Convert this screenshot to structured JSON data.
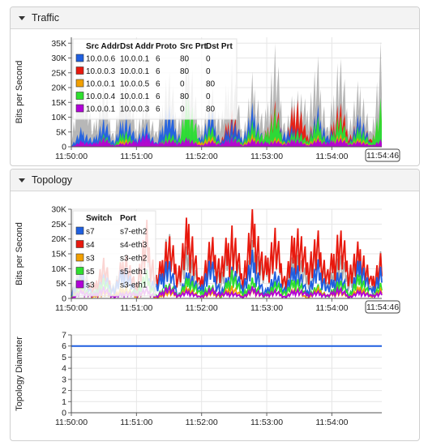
{
  "panels": [
    {
      "title": "Traffic"
    },
    {
      "title": "Topology"
    }
  ],
  "colors": {
    "blue": "#1f5fe0",
    "red": "#e8190e",
    "orange": "#f2a000",
    "green": "#2ee02e",
    "purple": "#b100d8",
    "gray": "#aaaaaa"
  },
  "chart_data": [
    {
      "type": "area",
      "title": "Traffic",
      "ylabel": "Bits per Second",
      "ylim": [
        0,
        37000
      ],
      "y_ticks": [
        "0",
        "5K",
        "10K",
        "15K",
        "20K",
        "25K",
        "30K",
        "35K"
      ],
      "x_ticks": [
        "11:50:00",
        "11:51:00",
        "11:52:00",
        "11:53:00",
        "11:54:00"
      ],
      "x_current": "11:54:46",
      "grid": true,
      "legend_position": "top-left",
      "legend_headers": [
        "Src Addr",
        "Dst Addr",
        "Proto",
        "Src Prt",
        "Dst Prt"
      ],
      "legend_rows": [
        {
          "color": "#1f5fe0",
          "cells": [
            "10.0.0.6",
            "10.0.0.1",
            "6",
            "80",
            "0"
          ]
        },
        {
          "color": "#e8190e",
          "cells": [
            "10.0.0.3",
            "10.0.0.1",
            "6",
            "80",
            "0"
          ]
        },
        {
          "color": "#f2a000",
          "cells": [
            "10.0.0.1",
            "10.0.0.5",
            "6",
            "0",
            "80"
          ]
        },
        {
          "color": "#2ee02e",
          "cells": [
            "10.0.0.4",
            "10.0.0.1",
            "6",
            "80",
            "0"
          ]
        },
        {
          "color": "#b100d8",
          "cells": [
            "10.0.0.1",
            "10.0.0.3",
            "6",
            "0",
            "80"
          ]
        }
      ],
      "series_envelope": {
        "gray": [
          2000,
          30000,
          5000,
          20000,
          3000,
          28000,
          6000,
          15000,
          4000,
          25000,
          8000,
          33000,
          5000,
          18000,
          9000,
          27000,
          4000,
          22000,
          7000,
          31000,
          6000,
          19000,
          12000,
          26000,
          5000,
          30000,
          8000,
          21000,
          4000,
          34000
        ],
        "blue": [
          500,
          6000,
          2000,
          9000,
          1500,
          11000,
          3000,
          7000,
          1000,
          14000,
          4000,
          8000,
          2500,
          12000,
          1500,
          9000,
          3000,
          13000,
          2000,
          10000,
          4500,
          7000,
          1500,
          12000,
          3000,
          9000,
          2000,
          11000,
          1000,
          8000
        ],
        "red": [
          0,
          2000,
          500,
          3000,
          0,
          2500,
          1000,
          4000,
          500,
          3500,
          1500,
          6000,
          1000,
          8000,
          2000,
          12000,
          1500,
          9000,
          3000,
          14000,
          2000,
          17000,
          4000,
          11000,
          2500,
          15000,
          3500,
          10000,
          2000,
          13000
        ],
        "green": [
          0,
          1000,
          0,
          4000,
          500,
          6000,
          1000,
          3000,
          0,
          5000,
          2000,
          18000,
          1000,
          7000,
          500,
          4000,
          1500,
          8000,
          3000,
          12000,
          1000,
          6000,
          2000,
          9000,
          500,
          11000,
          1500,
          7000,
          1000,
          16000
        ],
        "orange": [
          0,
          1500,
          500,
          2000,
          0,
          3000,
          500,
          1500,
          1000,
          2500,
          500,
          2000,
          1500,
          3500,
          500,
          2000,
          1000,
          4000,
          500,
          3000,
          1500,
          2500,
          1000,
          3500,
          500,
          4500,
          1000,
          3000,
          500,
          2000
        ],
        "purple": [
          0,
          2000,
          1000,
          3000,
          500,
          1500,
          2000,
          4000,
          1000,
          2500,
          1500,
          3000,
          500,
          2000,
          1000,
          3500,
          500,
          2500,
          1500,
          2000,
          1000,
          3000,
          500,
          2500,
          1500,
          3000,
          1000,
          2000,
          500,
          2500
        ]
      }
    },
    {
      "type": "line",
      "title": "Topology",
      "ylabel": "Bits per Second",
      "ylim": [
        0,
        30000
      ],
      "y_ticks": [
        "0",
        "5K",
        "10K",
        "15K",
        "20K",
        "25K",
        "30K"
      ],
      "x_ticks": [
        "11:50:00",
        "11:51:00",
        "11:52:00",
        "11:53:00",
        "11:54:00"
      ],
      "x_current": "11:54:46",
      "grid": true,
      "legend_position": "top-left",
      "legend_headers": [
        "Switch",
        "Port"
      ],
      "legend_rows": [
        {
          "color": "#1f5fe0",
          "cells": [
            "s7",
            "s7-eth2"
          ]
        },
        {
          "color": "#e8190e",
          "cells": [
            "s4",
            "s4-eth3"
          ]
        },
        {
          "color": "#f2a000",
          "cells": [
            "s3",
            "s3-eth2"
          ]
        },
        {
          "color": "#2ee02e",
          "cells": [
            "s5",
            "s5-eth1"
          ]
        },
        {
          "color": "#b100d8",
          "cells": [
            "s3",
            "s3-eth1"
          ]
        }
      ],
      "series_envelope": {
        "gray": [
          3000,
          12000,
          2000,
          9000,
          4000,
          14000,
          3000,
          19000,
          5000,
          21000,
          8000,
          16000,
          4000,
          18000,
          6000,
          22000,
          3000,
          17000,
          9000,
          20000,
          5000,
          15000,
          7000,
          19000,
          4000,
          14000,
          6000,
          17000,
          3000,
          15000
        ],
        "red": [
          1000,
          8000,
          3000,
          12000,
          2000,
          15000,
          4000,
          22000,
          6000,
          20000,
          9000,
          26000,
          5000,
          18000,
          11000,
          23000,
          7000,
          28000,
          10000,
          21000,
          6000,
          24000,
          12000,
          19000,
          8000,
          22000,
          10000,
          17000,
          6000,
          14000
        ],
        "blue": [
          2000,
          9000,
          1000,
          7000,
          3000,
          11000,
          2000,
          8000,
          4000,
          13000,
          1000,
          9000,
          3000,
          12000,
          2000,
          10000,
          4000,
          14000,
          1500,
          8000,
          3000,
          12000,
          2000,
          11000,
          3500,
          9000,
          1000,
          13000,
          2500,
          10000
        ],
        "green": [
          500,
          4000,
          1000,
          6000,
          500,
          3000,
          2000,
          8000,
          500,
          5000,
          1000,
          7000,
          2000,
          4000,
          500,
          9000,
          1500,
          6000,
          500,
          5000,
          2000,
          7000,
          1000,
          4000,
          500,
          6000,
          1500,
          8000,
          500,
          5000
        ],
        "orange": [
          0,
          3000,
          500,
          2000,
          1000,
          4000,
          500,
          3000,
          0,
          2500,
          1000,
          3500,
          500,
          2000,
          1000,
          4000,
          500,
          3000,
          1000,
          2500,
          500,
          3500,
          0,
          3000,
          1000,
          2500,
          500,
          4000,
          500,
          3000
        ],
        "purple": [
          0,
          2500,
          1000,
          3500,
          500,
          2000,
          1500,
          3000,
          500,
          4000,
          1000,
          2500,
          500,
          3000,
          1500,
          2000,
          500,
          3500,
          1000,
          2500,
          500,
          3000,
          1500,
          2000,
          1000,
          3500,
          500,
          2500,
          1000,
          2000
        ]
      }
    },
    {
      "type": "line",
      "ylabel": "Topology Diameter",
      "ylim": [
        0,
        7
      ],
      "y_ticks": [
        "0",
        "1",
        "2",
        "3",
        "4",
        "5",
        "6",
        "7"
      ],
      "x_ticks": [
        "11:50:00",
        "11:51:00",
        "11:52:00",
        "11:53:00",
        "11:54:00"
      ],
      "grid": true,
      "series": [
        {
          "color": "#1f5fe0",
          "values": [
            6,
            6
          ]
        }
      ]
    }
  ]
}
